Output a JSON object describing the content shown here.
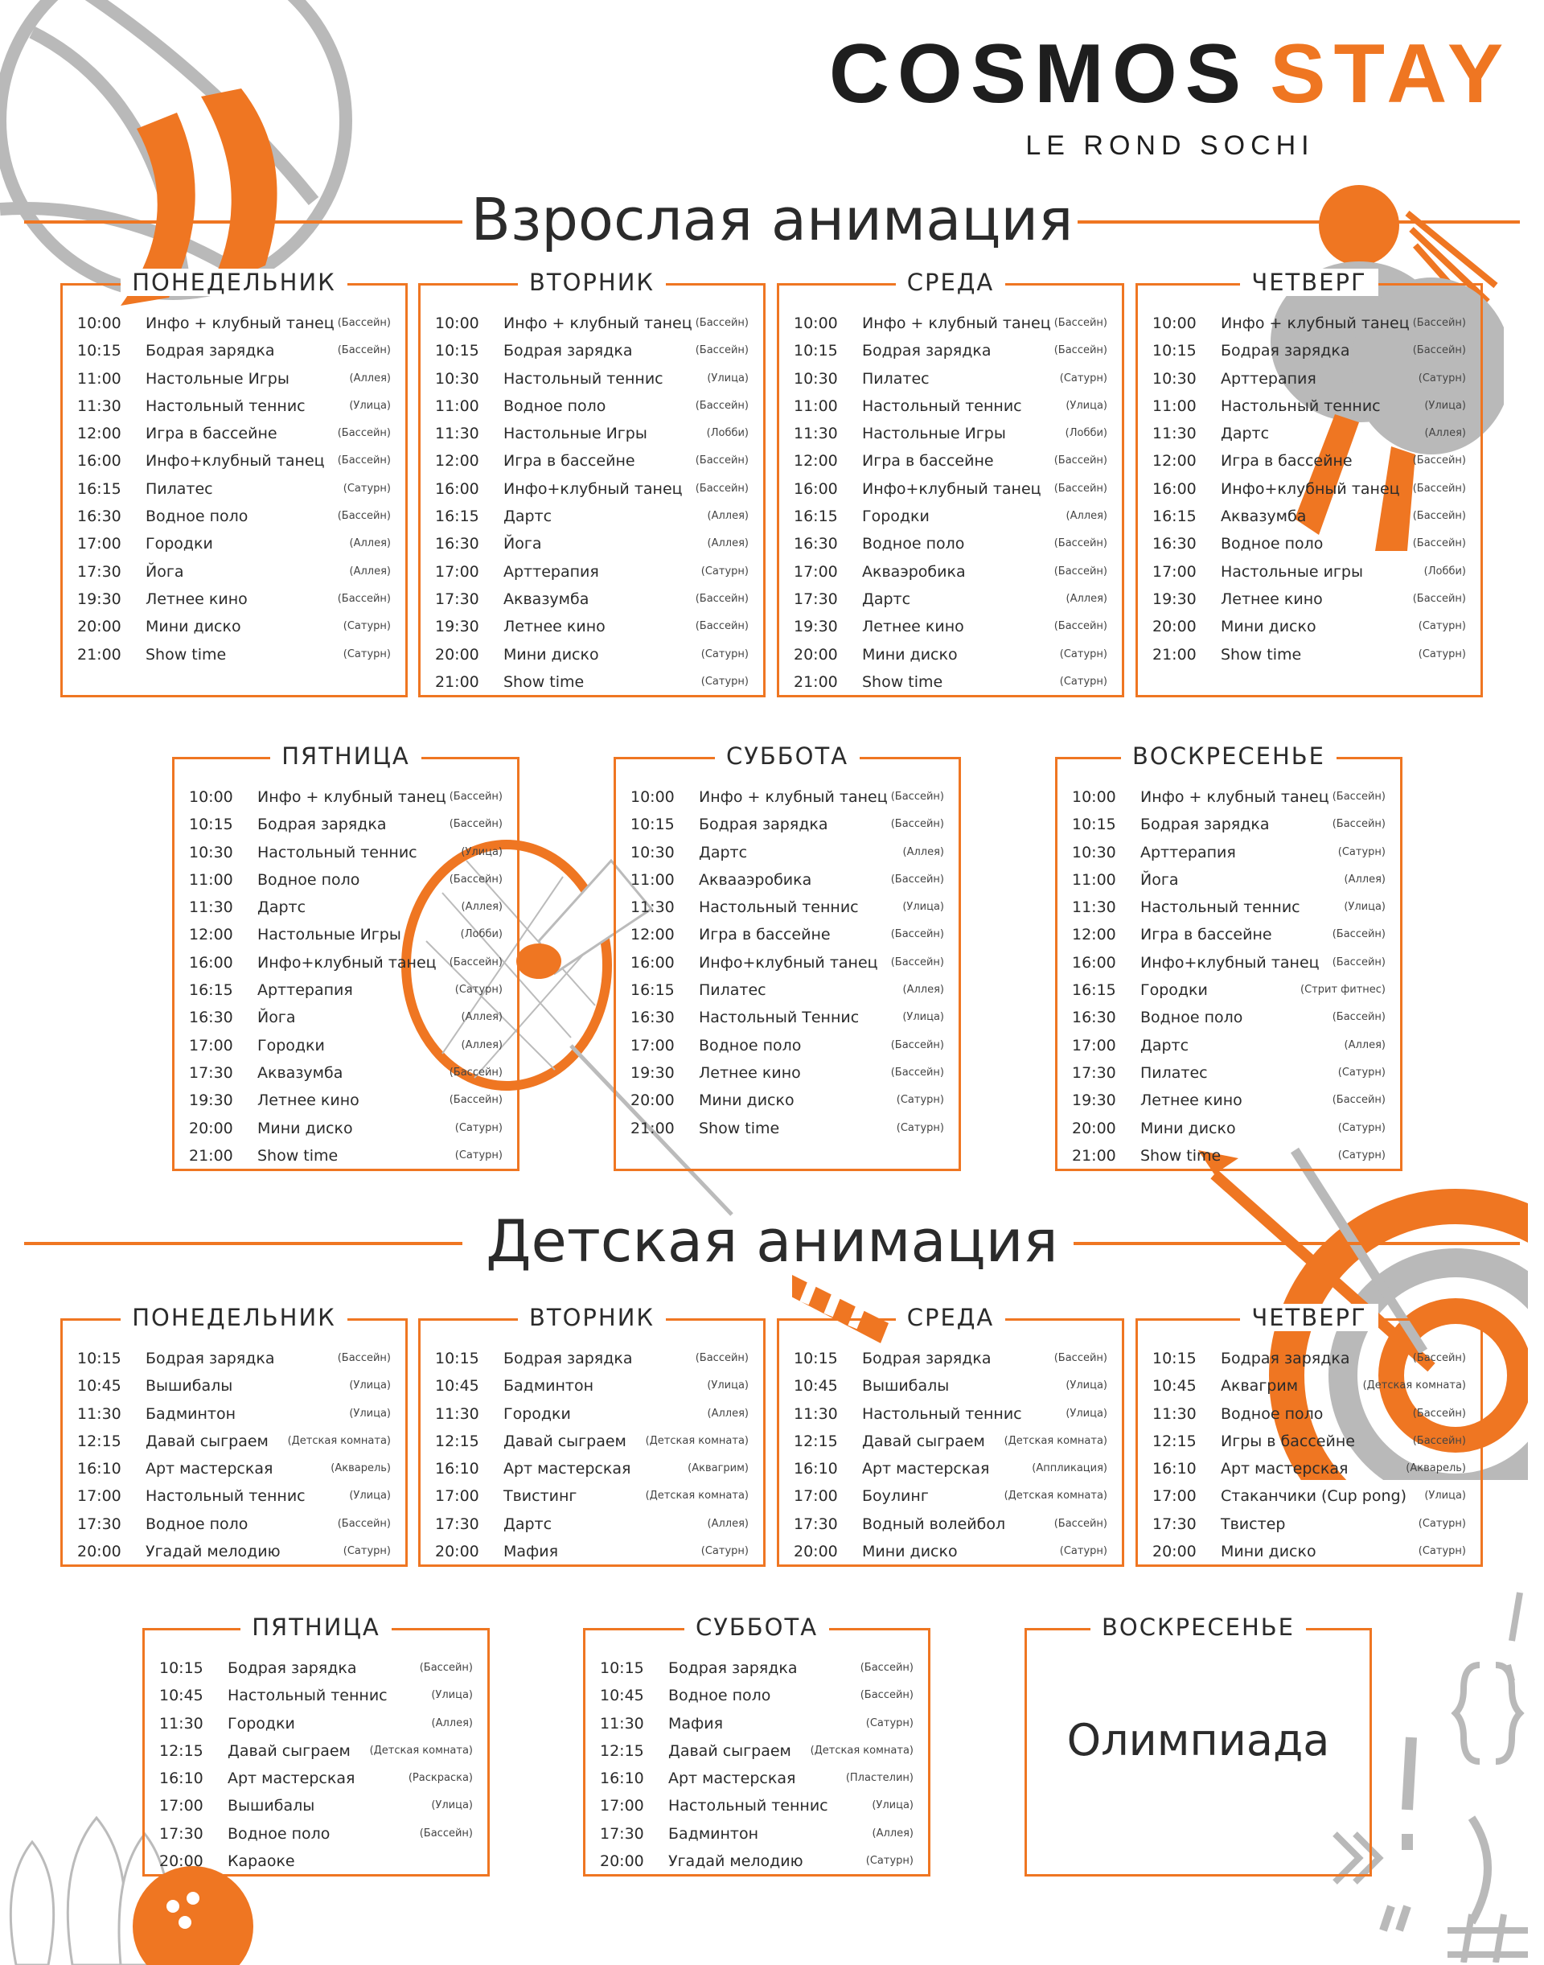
{
  "brand": {
    "name_part1": "COSMOS",
    "name_part2": "STAY",
    "subtitle": "LE ROND SOCHI"
  },
  "colors": {
    "accent": "#ef7622",
    "gray": "#b9b9b9",
    "text": "#2b2b2b"
  },
  "adult": {
    "title": "Взрослая анимация",
    "days": [
      {
        "name": "ПОНЕДЕЛЬНИК",
        "rows": [
          [
            "10:00",
            "Инфо + клубный танец",
            "(Бассейн)"
          ],
          [
            "10:15",
            "Бодрая зарядка",
            "(Бассейн)"
          ],
          [
            "11:00",
            "Настольные Игры",
            "(Аллея)"
          ],
          [
            "11:30",
            "Настольный теннис",
            "(Улица)"
          ],
          [
            "12:00",
            "Игра в бассейне",
            "(Бассейн)"
          ],
          [
            "16:00",
            "Инфо+клубный танец",
            "(Бассейн)"
          ],
          [
            "16:15",
            "Пилатес",
            "(Сатурн)"
          ],
          [
            "16:30",
            "Водное поло",
            "(Бассейн)"
          ],
          [
            "17:00",
            "Городки",
            "(Аллея)"
          ],
          [
            "17:30",
            "Йога",
            "(Аллея)"
          ],
          [
            "19:30",
            "Летнее кино",
            "(Бассейн)"
          ],
          [
            "20:00",
            "Мини диско",
            "(Сатурн)"
          ],
          [
            "21:00",
            "Show time",
            "(Сатурн)"
          ]
        ]
      },
      {
        "name": "ВТОРНИК",
        "rows": [
          [
            "10:00",
            "Инфо + клубный танец",
            "(Бассейн)"
          ],
          [
            "10:15",
            "Бодрая зарядка",
            "(Бассейн)"
          ],
          [
            "10:30",
            "Настольный теннис",
            "(Улица)"
          ],
          [
            "11:00",
            "Водное поло",
            "(Бассейн)"
          ],
          [
            "11:30",
            "Настольные Игры",
            "(Лобби)"
          ],
          [
            "12:00",
            "Игра в бассейне",
            "(Бассейн)"
          ],
          [
            "16:00",
            "Инфо+клубный танец",
            "(Бассейн)"
          ],
          [
            "16:15",
            "Дартс",
            "(Аллея)"
          ],
          [
            "16:30",
            "Йога",
            "(Аллея)"
          ],
          [
            "17:00",
            "Арттерапия",
            "(Сатурн)"
          ],
          [
            "17:30",
            "Аквазумба",
            "(Бассейн)"
          ],
          [
            "19:30",
            "Летнее кино",
            "(Бассейн)"
          ],
          [
            "20:00",
            "Мини диско",
            "(Сатурн)"
          ],
          [
            "21:00",
            "Show time",
            "(Сатурн)"
          ]
        ]
      },
      {
        "name": "СРЕДА",
        "rows": [
          [
            "10:00",
            "Инфо + клубный танец",
            "(Бассейн)"
          ],
          [
            "10:15",
            "Бодрая зарядка",
            "(Бассейн)"
          ],
          [
            "10:30",
            "Пилатес",
            "(Сатурн)"
          ],
          [
            "11:00",
            "Настольный теннис",
            "(Улица)"
          ],
          [
            "11:30",
            "Настольные Игры",
            "(Лобби)"
          ],
          [
            "12:00",
            "Игра в бассейне",
            "(Бассейн)"
          ],
          [
            "16:00",
            "Инфо+клубный танец",
            "(Бассейн)"
          ],
          [
            "16:15",
            "Городки",
            "(Аллея)"
          ],
          [
            "16:30",
            "Водное поло",
            "(Бассейн)"
          ],
          [
            "17:00",
            "Акваэробика",
            "(Бассейн)"
          ],
          [
            "17:30",
            "Дартс",
            "(Аллея)"
          ],
          [
            "19:30",
            "Летнее кино",
            "(Бассейн)"
          ],
          [
            "20:00",
            "Мини диско",
            "(Сатурн)"
          ],
          [
            "21:00",
            "Show time",
            "(Сатурн)"
          ]
        ]
      },
      {
        "name": "ЧЕТВЕРГ",
        "rows": [
          [
            "10:00",
            "Инфо + клубный танец",
            "(Бассейн)"
          ],
          [
            "10:15",
            "Бодрая зарядка",
            "(Бассейн)"
          ],
          [
            "10:30",
            "Арттерапия",
            "(Сатурн)"
          ],
          [
            "11:00",
            "Настольный теннис",
            "(Улица)"
          ],
          [
            "11:30",
            "Дартс",
            "(Аллея)"
          ],
          [
            "12:00",
            "Игра в бассейне",
            "(Бассейн)"
          ],
          [
            "16:00",
            "Инфо+клубный танец",
            "(Бассейн)"
          ],
          [
            "16:15",
            "Аквазумба",
            "(Бассейн)"
          ],
          [
            "16:30",
            "Водное поло",
            "(Бассейн)"
          ],
          [
            "17:00",
            "Настольные игры",
            "(Лобби)"
          ],
          [
            "19:30",
            "Летнее кино",
            "(Бассейн)"
          ],
          [
            "20:00",
            "Мини диско",
            "(Сатурн)"
          ],
          [
            "21:00",
            "Show time",
            "(Сатурн)"
          ]
        ]
      },
      {
        "name": "ПЯТНИЦА",
        "rows": [
          [
            "10:00",
            "Инфо + клубный танец",
            "(Бассейн)"
          ],
          [
            "10:15",
            "Бодрая зарядка",
            "(Бассейн)"
          ],
          [
            "10:30",
            "Настольный теннис",
            "(Улица)"
          ],
          [
            "11:00",
            "Водное поло",
            "(Бассейн)"
          ],
          [
            "11:30",
            "Дартс",
            "(Аллея)"
          ],
          [
            "12:00",
            "Настольные Игры",
            "(Лобби)"
          ],
          [
            "16:00",
            "Инфо+клубный танец",
            "(Бассейн)"
          ],
          [
            "16:15",
            "Арттерапия",
            "(Сатурн)"
          ],
          [
            "16:30",
            "Йога",
            "(Аллея)"
          ],
          [
            "17:00",
            "Городки",
            "(Аллея)"
          ],
          [
            "17:30",
            "Аквазумба",
            "(Бассейн)"
          ],
          [
            "19:30",
            "Летнее кино",
            "(Бассейн)"
          ],
          [
            "20:00",
            "Мини диско",
            "(Сатурн)"
          ],
          [
            "21:00",
            "Show time",
            "(Сатурн)"
          ]
        ]
      },
      {
        "name": "СУББОТА",
        "rows": [
          [
            "10:00",
            "Инфо + клубный танец",
            "(Бассейн)"
          ],
          [
            "10:15",
            "Бодрая зарядка",
            "(Бассейн)"
          ],
          [
            "10:30",
            "Дартс",
            "(Аллея)"
          ],
          [
            "11:00",
            "Аквааэробика",
            "(Бассейн)"
          ],
          [
            "11:30",
            "Настольный теннис",
            "(Улица)"
          ],
          [
            "12:00",
            "Игра в бассейне",
            "(Бассейн)"
          ],
          [
            "16:00",
            "Инфо+клубный танец",
            "(Бассейн)"
          ],
          [
            "16:15",
            "Пилатес",
            "(Аллея)"
          ],
          [
            "16:30",
            "Настольный Теннис",
            "(Улица)"
          ],
          [
            "17:00",
            "Водное поло",
            "(Бассейн)"
          ],
          [
            "19:30",
            "Летнее кино",
            "(Бассейн)"
          ],
          [
            "20:00",
            "Мини диско",
            "(Сатурн)"
          ],
          [
            "21:00",
            "Show time",
            "(Сатурн)"
          ]
        ]
      },
      {
        "name": "ВОСКРЕСЕНЬЕ",
        "rows": [
          [
            "10:00",
            "Инфо + клубный танец",
            "(Бассейн)"
          ],
          [
            "10:15",
            "Бодрая зарядка",
            "(Бассейн)"
          ],
          [
            "10:30",
            "Арттерапия",
            "(Сатурн)"
          ],
          [
            "11:00",
            "Йога",
            "(Аллея)"
          ],
          [
            "11:30",
            "Настольный теннис",
            "(Улица)"
          ],
          [
            "12:00",
            "Игра в бассейне",
            "(Бассейн)"
          ],
          [
            "16:00",
            "Инфо+клубный танец",
            "(Бассейн)"
          ],
          [
            "16:15",
            "Городки",
            "(Стрит фитнес)"
          ],
          [
            "16:30",
            "Водное поло",
            "(Бассейн)"
          ],
          [
            "17:00",
            "Дартс",
            "(Аллея)"
          ],
          [
            "17:30",
            "Пилатес",
            "(Сатурн)"
          ],
          [
            "19:30",
            "Летнее кино",
            "(Бассейн)"
          ],
          [
            "20:00",
            "Мини диско",
            "(Сатурн)"
          ],
          [
            "21:00",
            "Show time",
            "(Сатурн)"
          ]
        ]
      }
    ]
  },
  "kids": {
    "title": "Детская анимация",
    "days": [
      {
        "name": "ПОНЕДЕЛЬНИК",
        "rows": [
          [
            "10:15",
            "Бодрая зарядка",
            "(Бассейн)"
          ],
          [
            "10:45",
            "Вышибалы",
            "(Улица)"
          ],
          [
            "11:30",
            "Бадминтон",
            "(Улица)"
          ],
          [
            "12:15",
            "Давай сыграем",
            "(Детская комната)"
          ],
          [
            "16:10",
            "Арт мастерская",
            "(Акварель)"
          ],
          [
            "17:00",
            "Настольный теннис",
            "(Улица)"
          ],
          [
            "17:30",
            "Водное поло",
            "(Бассейн)"
          ],
          [
            "20:00",
            "Угадай мелодию",
            "(Сатурн)"
          ]
        ]
      },
      {
        "name": "ВТОРНИК",
        "rows": [
          [
            "10:15",
            "Бодрая зарядка",
            "(Бассейн)"
          ],
          [
            "10:45",
            "Бадминтон",
            "(Улица)"
          ],
          [
            "11:30",
            "Городки",
            "(Аллея)"
          ],
          [
            "12:15",
            "Давай сыграем",
            "(Детская комната)"
          ],
          [
            "16:10",
            "Арт мастерская",
            "(Аквагрим)"
          ],
          [
            "17:00",
            "Твистинг",
            "(Детская комната)"
          ],
          [
            "17:30",
            "Дартс",
            "(Аллея)"
          ],
          [
            "20:00",
            "Мафия",
            "(Сатурн)"
          ]
        ]
      },
      {
        "name": "СРЕДА",
        "rows": [
          [
            "10:15",
            "Бодрая зарядка",
            "(Бассейн)"
          ],
          [
            "10:45",
            "Вышибалы",
            "(Улица)"
          ],
          [
            "11:30",
            "Настольный теннис",
            "(Улица)"
          ],
          [
            "12:15",
            "Давай сыграем",
            "(Детская комната)"
          ],
          [
            "16:10",
            "Арт мастерская",
            "(Аппликация)"
          ],
          [
            "17:00",
            "Боулинг",
            "(Детская комната)"
          ],
          [
            "17:30",
            "Водный волейбол",
            "(Бассейн)"
          ],
          [
            "20:00",
            "Мини диско",
            "(Сатурн)"
          ]
        ]
      },
      {
        "name": "ЧЕТВЕРГ",
        "rows": [
          [
            "10:15",
            "Бодрая зарядка",
            "(Бассейн)"
          ],
          [
            "10:45",
            "Аквагрим",
            "(Детская комната)"
          ],
          [
            "11:30",
            "Водное поло",
            "(Бассейн)"
          ],
          [
            "12:15",
            "Игры в бассейне",
            "(Бассейн)"
          ],
          [
            "16:10",
            "Арт мастерская",
            "(Акварель)"
          ],
          [
            "17:00",
            "Стаканчики (Cup pong)",
            "(Улица)"
          ],
          [
            "17:30",
            "Твистер",
            "(Сатурн)"
          ],
          [
            "20:00",
            "Мини диско",
            "(Сатурн)"
          ]
        ]
      },
      {
        "name": "ПЯТНИЦА",
        "rows": [
          [
            "10:15",
            "Бодрая зарядка",
            "(Бассейн)"
          ],
          [
            "10:45",
            "Настольный теннис",
            "(Улица)"
          ],
          [
            "11:30",
            "Городки",
            "(Аллея)"
          ],
          [
            "12:15",
            "Давай сыграем",
            "(Детская комната)"
          ],
          [
            "16:10",
            "Арт мастерская",
            "(Раскраска)"
          ],
          [
            "17:00",
            "Вышибалы",
            "(Улица)"
          ],
          [
            "17:30",
            "Водное поло",
            "(Бассейн)"
          ],
          [
            "20:00",
            "Караоке",
            ""
          ]
        ]
      },
      {
        "name": "СУББОТА",
        "rows": [
          [
            "10:15",
            "Бодрая зарядка",
            "(Бассейн)"
          ],
          [
            "10:45",
            "Водное поло",
            "(Бассейн)"
          ],
          [
            "11:30",
            "Мафия",
            "(Сатурн)"
          ],
          [
            "12:15",
            "Давай сыграем",
            "(Детская комната)"
          ],
          [
            "16:10",
            "Арт мастерская",
            "(Пластелин)"
          ],
          [
            "17:00",
            "Настольный теннис",
            "(Улица)"
          ],
          [
            "17:30",
            "Бадминтон",
            "(Аллея)"
          ],
          [
            "20:00",
            "Угадай мелодию",
            "(Сатурн)"
          ]
        ]
      }
    ],
    "sunday": {
      "name": "ВОСКРЕСЕНЬЕ",
      "text": "Олимпиада"
    }
  }
}
